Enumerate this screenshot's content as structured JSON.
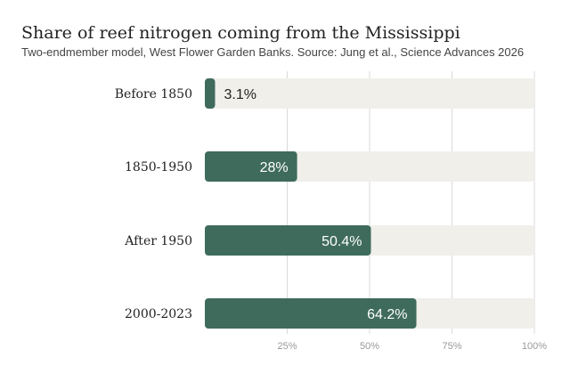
{
  "chart_data": {
    "type": "bar",
    "orientation": "horizontal",
    "title": "Share of reef nitrogen coming from the Mississippi",
    "subtitle": "Two-endmember model, West Flower Garden Banks. Source: Jung et al., Science Advances 2026",
    "categories": [
      "Before 1850",
      "1850-1950",
      "After 1950",
      "2000-2023"
    ],
    "values": [
      3.1,
      28,
      50.4,
      64.2
    ],
    "value_labels": [
      "3.1%",
      "28%",
      "50.4%",
      "64.2%"
    ],
    "xlim": [
      0,
      100
    ],
    "x_ticks": [
      25,
      50,
      75,
      100
    ],
    "x_tick_labels": [
      "25%",
      "50%",
      "75%",
      "100%"
    ],
    "grid": true,
    "bar_color": "#3f6b5c",
    "track_color": "#f0efea",
    "grid_color": "#d9d9d9"
  }
}
